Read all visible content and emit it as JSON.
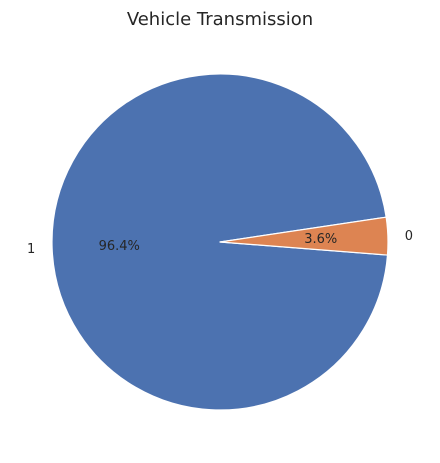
{
  "chart_data": {
    "type": "pie",
    "title": "Vehicle Transmission",
    "categories": [
      "1",
      "0"
    ],
    "values": [
      96.4,
      3.6
    ],
    "labels": [
      "1",
      "0"
    ],
    "percent_labels": [
      "96.4%",
      "3.6%"
    ],
    "colors": [
      "#4c72b0",
      "#dd8452"
    ],
    "legend": "none"
  }
}
